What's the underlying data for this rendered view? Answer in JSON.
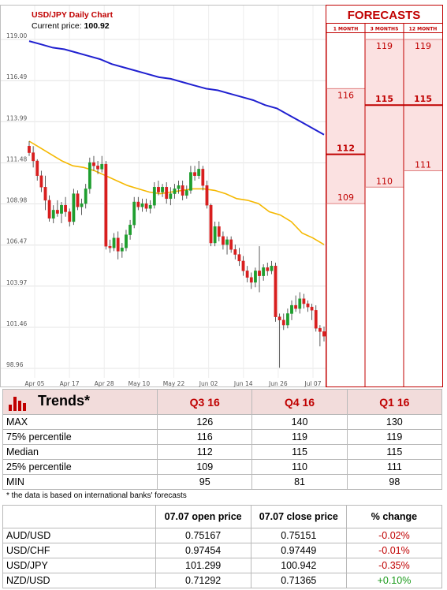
{
  "chart_data": [
    {
      "type": "candlestick",
      "title": "USD/JPY Daily Chart",
      "current_price_label": "Current price:",
      "current_price": "100.92",
      "y_ticks": [
        "119.00",
        "116.49",
        "113.99",
        "111.48",
        "108.98",
        "106.47",
        "103.97",
        "101.46",
        "98.96"
      ],
      "ylim": [
        98.96,
        119.0
      ],
      "x_ticks": [
        "Apr 05",
        "Apr 17",
        "Apr 28",
        "May 10",
        "May 22",
        "Jun 02",
        "Jun 14",
        "Jun 26",
        "Jul 07"
      ],
      "grid": true,
      "colors": {
        "up": "#1e9e2e",
        "down": "#d81e1e",
        "ma_fast": "#f5b800",
        "ma_slow": "#2020d0"
      },
      "candles": [
        {
          "o": 112.5,
          "h": 112.8,
          "l": 111.9,
          "c": 112.1
        },
        {
          "o": 112.1,
          "h": 112.5,
          "l": 111.2,
          "c": 111.6
        },
        {
          "o": 111.6,
          "h": 111.7,
          "l": 110.4,
          "c": 110.7
        },
        {
          "o": 110.7,
          "h": 111.0,
          "l": 109.7,
          "c": 110.0
        },
        {
          "o": 110.0,
          "h": 110.7,
          "l": 108.6,
          "c": 109.2
        },
        {
          "o": 109.2,
          "h": 109.5,
          "l": 107.9,
          "c": 108.1
        },
        {
          "o": 108.1,
          "h": 108.9,
          "l": 107.8,
          "c": 108.6
        },
        {
          "o": 108.6,
          "h": 109.2,
          "l": 108.2,
          "c": 108.4
        },
        {
          "o": 108.4,
          "h": 109.1,
          "l": 107.8,
          "c": 108.9
        },
        {
          "o": 108.9,
          "h": 109.4,
          "l": 108.2,
          "c": 108.5
        },
        {
          "o": 108.5,
          "h": 108.7,
          "l": 107.6,
          "c": 107.9
        },
        {
          "o": 107.9,
          "h": 109.9,
          "l": 107.7,
          "c": 109.6
        },
        {
          "o": 109.6,
          "h": 109.8,
          "l": 108.6,
          "c": 108.8
        },
        {
          "o": 108.8,
          "h": 109.3,
          "l": 108.3,
          "c": 109.0
        },
        {
          "o": 109.0,
          "h": 110.2,
          "l": 108.7,
          "c": 109.9
        },
        {
          "o": 109.9,
          "h": 111.8,
          "l": 109.6,
          "c": 111.5
        },
        {
          "o": 111.5,
          "h": 111.9,
          "l": 111.0,
          "c": 111.3
        },
        {
          "o": 111.3,
          "h": 111.6,
          "l": 110.8,
          "c": 111.1
        },
        {
          "o": 111.1,
          "h": 111.9,
          "l": 110.9,
          "c": 111.4
        },
        {
          "o": 111.4,
          "h": 111.6,
          "l": 106.2,
          "c": 106.4
        },
        {
          "o": 106.4,
          "h": 106.8,
          "l": 106.0,
          "c": 106.3
        },
        {
          "o": 106.3,
          "h": 107.2,
          "l": 106.1,
          "c": 106.9
        },
        {
          "o": 106.9,
          "h": 107.3,
          "l": 105.6,
          "c": 106.1
        },
        {
          "o": 106.1,
          "h": 106.6,
          "l": 105.7,
          "c": 106.3
        },
        {
          "o": 106.3,
          "h": 107.4,
          "l": 106.1,
          "c": 107.1
        },
        {
          "o": 107.1,
          "h": 108.0,
          "l": 106.8,
          "c": 107.7
        },
        {
          "o": 107.7,
          "h": 109.4,
          "l": 107.5,
          "c": 109.1
        },
        {
          "o": 109.1,
          "h": 109.4,
          "l": 108.6,
          "c": 108.8
        },
        {
          "o": 108.8,
          "h": 109.3,
          "l": 108.5,
          "c": 109.0
        },
        {
          "o": 109.0,
          "h": 109.3,
          "l": 108.5,
          "c": 108.7
        },
        {
          "o": 108.7,
          "h": 109.2,
          "l": 108.4,
          "c": 108.9
        },
        {
          "o": 108.9,
          "h": 110.3,
          "l": 108.7,
          "c": 110.0
        },
        {
          "o": 110.0,
          "h": 110.4,
          "l": 109.5,
          "c": 109.7
        },
        {
          "o": 109.7,
          "h": 110.2,
          "l": 109.4,
          "c": 110.0
        },
        {
          "o": 110.0,
          "h": 110.3,
          "l": 109.0,
          "c": 109.3
        },
        {
          "o": 109.3,
          "h": 110.0,
          "l": 108.9,
          "c": 109.6
        },
        {
          "o": 109.6,
          "h": 110.2,
          "l": 109.3,
          "c": 109.9
        },
        {
          "o": 109.9,
          "h": 110.4,
          "l": 109.6,
          "c": 110.1
        },
        {
          "o": 110.1,
          "h": 110.4,
          "l": 109.2,
          "c": 109.5
        },
        {
          "o": 109.5,
          "h": 110.1,
          "l": 109.3,
          "c": 109.8
        },
        {
          "o": 109.8,
          "h": 111.3,
          "l": 109.6,
          "c": 110.9
        },
        {
          "o": 110.9,
          "h": 111.3,
          "l": 110.4,
          "c": 110.7
        },
        {
          "o": 110.7,
          "h": 111.6,
          "l": 110.5,
          "c": 111.1
        },
        {
          "o": 111.1,
          "h": 111.3,
          "l": 109.8,
          "c": 110.1
        },
        {
          "o": 110.1,
          "h": 110.4,
          "l": 108.7,
          "c": 108.9
        },
        {
          "o": 108.9,
          "h": 109.0,
          "l": 106.4,
          "c": 106.6
        },
        {
          "o": 106.6,
          "h": 107.9,
          "l": 106.4,
          "c": 107.6
        },
        {
          "o": 107.6,
          "h": 107.9,
          "l": 106.7,
          "c": 107.0
        },
        {
          "o": 107.0,
          "h": 107.3,
          "l": 106.2,
          "c": 106.5
        },
        {
          "o": 106.5,
          "h": 107.0,
          "l": 105.9,
          "c": 106.8
        },
        {
          "o": 106.8,
          "h": 107.0,
          "l": 106.0,
          "c": 106.2
        },
        {
          "o": 106.2,
          "h": 106.5,
          "l": 105.6,
          "c": 105.9
        },
        {
          "o": 105.9,
          "h": 106.3,
          "l": 105.2,
          "c": 105.5
        },
        {
          "o": 105.5,
          "h": 105.8,
          "l": 104.6,
          "c": 104.9
        },
        {
          "o": 104.9,
          "h": 105.2,
          "l": 104.2,
          "c": 104.5
        },
        {
          "o": 104.5,
          "h": 104.8,
          "l": 103.8,
          "c": 104.2
        },
        {
          "o": 104.2,
          "h": 105.1,
          "l": 103.9,
          "c": 104.9
        },
        {
          "o": 104.9,
          "h": 106.4,
          "l": 103.6,
          "c": 104.6
        },
        {
          "o": 104.6,
          "h": 105.3,
          "l": 104.3,
          "c": 105.1
        },
        {
          "o": 105.1,
          "h": 105.4,
          "l": 104.6,
          "c": 104.9
        },
        {
          "o": 104.9,
          "h": 105.5,
          "l": 104.7,
          "c": 105.2
        },
        {
          "o": 105.2,
          "h": 105.4,
          "l": 101.8,
          "c": 102.1
        },
        {
          "o": 102.1,
          "h": 102.3,
          "l": 99.0,
          "c": 101.9
        },
        {
          "o": 101.9,
          "h": 102.3,
          "l": 101.3,
          "c": 101.6
        },
        {
          "o": 101.6,
          "h": 102.6,
          "l": 101.4,
          "c": 102.3
        },
        {
          "o": 102.3,
          "h": 103.1,
          "l": 101.9,
          "c": 102.8
        },
        {
          "o": 102.8,
          "h": 103.4,
          "l": 102.4,
          "c": 102.6
        },
        {
          "o": 102.6,
          "h": 103.6,
          "l": 102.3,
          "c": 103.2
        },
        {
          "o": 103.2,
          "h": 103.5,
          "l": 102.6,
          "c": 102.9
        },
        {
          "o": 102.9,
          "h": 103.1,
          "l": 102.4,
          "c": 102.7
        },
        {
          "o": 102.7,
          "h": 102.9,
          "l": 101.9,
          "c": 102.5
        },
        {
          "o": 102.5,
          "h": 102.8,
          "l": 101.2,
          "c": 101.4
        },
        {
          "o": 101.4,
          "h": 101.6,
          "l": 100.3,
          "c": 101.2
        },
        {
          "o": 101.2,
          "h": 101.5,
          "l": 100.6,
          "c": 100.92
        }
      ],
      "ma_fast": [
        112.8,
        112.4,
        112.0,
        111.6,
        111.3,
        111.2,
        111.0,
        110.7,
        110.4,
        110.1,
        109.9,
        109.7,
        109.6,
        109.7,
        109.8,
        109.9,
        109.9,
        109.8,
        109.6,
        109.3,
        109.2,
        109.0,
        108.5,
        108.3,
        107.9,
        107.2,
        106.9,
        106.5
      ],
      "ma_slow": [
        118.9,
        118.7,
        118.5,
        118.4,
        118.2,
        118.0,
        117.8,
        117.5,
        117.3,
        117.1,
        116.9,
        116.7,
        116.6,
        116.4,
        116.2,
        116.0,
        115.9,
        115.7,
        115.5,
        115.3,
        115.0,
        114.8,
        114.4,
        114.0,
        113.6,
        113.2
      ]
    },
    {
      "type": "forecast-range",
      "title": "FORECASTS",
      "columns": [
        "1 MONTH",
        "3 MONTHS",
        "12 MONTH"
      ],
      "ranges": [
        {
          "high": 116,
          "median": 112,
          "low": 109
        },
        {
          "high": 119,
          "median": 115,
          "low": 110
        },
        {
          "high": 119,
          "median": 115,
          "low": 111
        }
      ]
    },
    {
      "type": "table",
      "title": "Trends*",
      "columns": [
        "Q3 16",
        "Q4 16",
        "Q1 16"
      ],
      "rows": [
        {
          "label": "MAX",
          "values": [
            "126",
            "140",
            "130"
          ]
        },
        {
          "label": "75% percentile",
          "values": [
            "116",
            "119",
            "119"
          ]
        },
        {
          "label": "Median",
          "values": [
            "112",
            "115",
            "115"
          ]
        },
        {
          "label": "25% percentile",
          "values": [
            "109",
            "110",
            "111"
          ]
        },
        {
          "label": "MIN",
          "values": [
            "95",
            "81",
            "98"
          ]
        }
      ]
    },
    {
      "type": "table",
      "columns": [
        "07.07 open price",
        "07.07 close price",
        "% change"
      ],
      "rows": [
        {
          "label": "AUD/USD",
          "open": "0.75167",
          "close": "0.75151",
          "change": "-0.02%"
        },
        {
          "label": "USD/CHF",
          "open": "0.97454",
          "close": "0.97449",
          "change": "-0.01%"
        },
        {
          "label": "USD/JPY",
          "open": "101.299",
          "close": "100.942",
          "change": "-0.35%"
        },
        {
          "label": "NZD/USD",
          "open": "0.71292",
          "close": "0.71365",
          "change": "+0.10%"
        }
      ]
    }
  ],
  "footnote": "* the data is based on international banks' forecasts",
  "colors": {
    "accent_red": "#c00000",
    "header_pink": "#f2dcdb",
    "forecast_fill": "#fbe1e1",
    "negative": "#c00000",
    "positive": "#1a9a1a"
  }
}
